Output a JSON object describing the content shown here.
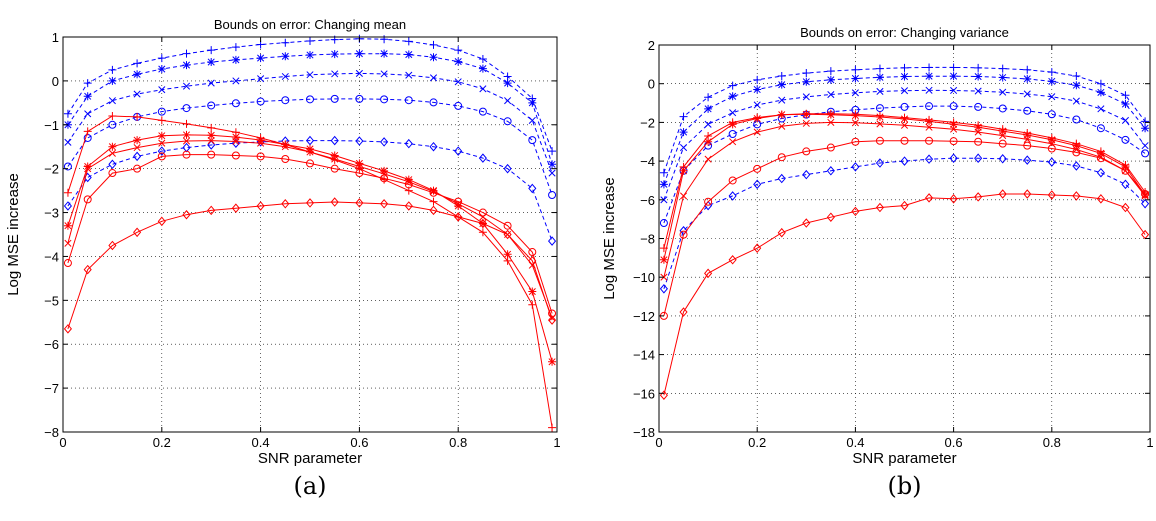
{
  "chart_data": [
    {
      "type": "line",
      "caption": "(a)",
      "title": "Bounds on error: Changing mean",
      "xlabel": "SNR parameter",
      "ylabel": "Log MSE increase",
      "xlim": [
        0,
        1
      ],
      "ylim": [
        -8,
        1
      ],
      "xticks": [
        0,
        0.2,
        0.4,
        0.6,
        0.8,
        1
      ],
      "xtick_labels": [
        "0",
        "0.2",
        "0.4",
        "0.6",
        "0.8",
        "1"
      ],
      "yticks": [
        -8,
        -7,
        -6,
        -5,
        -4,
        -3,
        -2,
        -1,
        0,
        1
      ],
      "ytick_labels": [
        "−8",
        "−7",
        "−6",
        "−5",
        "−4",
        "−3",
        "−2",
        "−1",
        "0",
        "1"
      ],
      "grid": true,
      "x": [
        0.01,
        0.05,
        0.1,
        0.15,
        0.2,
        0.25,
        0.3,
        0.35,
        0.4,
        0.45,
        0.5,
        0.55,
        0.6,
        0.65,
        0.7,
        0.75,
        0.8,
        0.85,
        0.9,
        0.95,
        0.99
      ],
      "series": [
        {
          "color": "#0000ff",
          "dash": true,
          "marker": "plus",
          "values": [
            -0.75,
            -0.05,
            0.25,
            0.4,
            0.52,
            0.62,
            0.7,
            0.77,
            0.83,
            0.87,
            0.91,
            0.94,
            0.96,
            0.95,
            0.9,
            0.82,
            0.7,
            0.5,
            0.1,
            -0.4,
            -1.6
          ]
        },
        {
          "color": "#0000ff",
          "dash": true,
          "marker": "star",
          "values": [
            -1.0,
            -0.35,
            0.0,
            0.15,
            0.27,
            0.36,
            0.43,
            0.48,
            0.52,
            0.56,
            0.59,
            0.61,
            0.62,
            0.62,
            0.6,
            0.54,
            0.44,
            0.28,
            -0.05,
            -0.5,
            -1.9
          ]
        },
        {
          "color": "#0000ff",
          "dash": true,
          "marker": "x",
          "values": [
            -1.4,
            -0.75,
            -0.45,
            -0.3,
            -0.2,
            -0.12,
            -0.05,
            0.0,
            0.05,
            0.1,
            0.14,
            0.16,
            0.17,
            0.16,
            0.13,
            0.07,
            -0.02,
            -0.18,
            -0.45,
            -0.9,
            -2.1
          ]
        },
        {
          "color": "#0000ff",
          "dash": true,
          "marker": "circle",
          "values": [
            -1.95,
            -1.3,
            -1.0,
            -0.82,
            -0.7,
            -0.62,
            -0.56,
            -0.51,
            -0.47,
            -0.44,
            -0.42,
            -0.41,
            -0.41,
            -0.42,
            -0.44,
            -0.49,
            -0.57,
            -0.7,
            -0.92,
            -1.35,
            -2.6
          ]
        },
        {
          "color": "#0000ff",
          "dash": true,
          "marker": "diamond",
          "values": [
            -2.85,
            -2.2,
            -1.9,
            -1.72,
            -1.6,
            -1.52,
            -1.46,
            -1.42,
            -1.39,
            -1.37,
            -1.36,
            -1.36,
            -1.37,
            -1.39,
            -1.43,
            -1.5,
            -1.6,
            -1.76,
            -2.0,
            -2.45,
            -3.65
          ]
        },
        {
          "color": "#ff0000",
          "dash": false,
          "marker": "plus",
          "values": [
            -2.55,
            -1.15,
            -0.8,
            -0.82,
            -0.9,
            -0.98,
            -1.07,
            -1.17,
            -1.3,
            -1.45,
            -1.62,
            -1.8,
            -2.0,
            -2.25,
            -2.5,
            -2.75,
            -3.1,
            -3.45,
            -4.1,
            -5.1,
            -7.9
          ]
        },
        {
          "color": "#ff0000",
          "dash": false,
          "marker": "star",
          "values": [
            -3.3,
            -1.95,
            -1.5,
            -1.35,
            -1.25,
            -1.23,
            -1.24,
            -1.28,
            -1.35,
            -1.45,
            -1.55,
            -1.7,
            -1.88,
            -2.05,
            -2.25,
            -2.5,
            -2.85,
            -3.25,
            -3.95,
            -4.8,
            -6.4
          ]
        },
        {
          "color": "#ff0000",
          "dash": false,
          "marker": "x",
          "values": [
            -3.7,
            -2.0,
            -1.65,
            -1.52,
            -1.42,
            -1.37,
            -1.36,
            -1.38,
            -1.42,
            -1.5,
            -1.62,
            -1.78,
            -1.95,
            -2.12,
            -2.3,
            -2.52,
            -2.8,
            -3.1,
            -3.5,
            -4.2,
            -5.4
          ]
        },
        {
          "color": "#ff0000",
          "dash": false,
          "marker": "circle",
          "values": [
            -4.15,
            -2.7,
            -2.1,
            -2.0,
            -1.72,
            -1.68,
            -1.68,
            -1.7,
            -1.72,
            -1.78,
            -1.88,
            -2.0,
            -2.1,
            -2.22,
            -2.36,
            -2.55,
            -2.75,
            -3.0,
            -3.3,
            -3.9,
            -5.3
          ]
        },
        {
          "color": "#ff0000",
          "dash": false,
          "marker": "diamond",
          "values": [
            -5.65,
            -4.3,
            -3.75,
            -3.45,
            -3.2,
            -3.05,
            -2.95,
            -2.9,
            -2.85,
            -2.8,
            -2.78,
            -2.76,
            -2.78,
            -2.8,
            -2.85,
            -2.95,
            -3.1,
            -3.25,
            -3.5,
            -4.1,
            -5.45
          ]
        }
      ]
    },
    {
      "type": "line",
      "caption": "(b)",
      "title": "Bounds on error: Changing variance",
      "xlabel": "SNR parameter",
      "ylabel": "Log MSE increase",
      "xlim": [
        0,
        1
      ],
      "ylim": [
        -18,
        2
      ],
      "xticks": [
        0,
        0.2,
        0.4,
        0.6,
        0.8,
        1
      ],
      "xtick_labels": [
        "0",
        "0.2",
        "0.4",
        "0.6",
        "0.8",
        "1"
      ],
      "yticks": [
        -18,
        -16,
        -14,
        -12,
        -10,
        -8,
        -6,
        -4,
        -2,
        0,
        2
      ],
      "ytick_labels": [
        "−18",
        "−16",
        "−14",
        "−12",
        "−10",
        "−8",
        "−6",
        "−4",
        "−2",
        "0",
        "2"
      ],
      "grid": true,
      "x": [
        0.01,
        0.05,
        0.1,
        0.15,
        0.2,
        0.25,
        0.3,
        0.35,
        0.4,
        0.45,
        0.5,
        0.55,
        0.6,
        0.65,
        0.7,
        0.75,
        0.8,
        0.85,
        0.9,
        0.95,
        0.99
      ],
      "series": [
        {
          "color": "#0000ff",
          "dash": true,
          "marker": "plus",
          "values": [
            -4.6,
            -1.7,
            -0.7,
            -0.1,
            0.2,
            0.4,
            0.55,
            0.65,
            0.72,
            0.78,
            0.82,
            0.84,
            0.84,
            0.82,
            0.78,
            0.72,
            0.6,
            0.4,
            0.0,
            -0.6,
            -1.95
          ]
        },
        {
          "color": "#0000ff",
          "dash": true,
          "marker": "star",
          "values": [
            -5.2,
            -2.5,
            -1.3,
            -0.65,
            -0.3,
            -0.05,
            0.1,
            0.2,
            0.27,
            0.33,
            0.37,
            0.39,
            0.39,
            0.37,
            0.32,
            0.25,
            0.12,
            -0.08,
            -0.45,
            -1.05,
            -2.3
          ]
        },
        {
          "color": "#0000ff",
          "dash": true,
          "marker": "x",
          "values": [
            -6.0,
            -3.3,
            -2.1,
            -1.5,
            -1.1,
            -0.85,
            -0.68,
            -0.56,
            -0.47,
            -0.4,
            -0.36,
            -0.34,
            -0.35,
            -0.38,
            -0.44,
            -0.53,
            -0.67,
            -0.9,
            -1.3,
            -1.9,
            -3.2
          ]
        },
        {
          "color": "#0000ff",
          "dash": true,
          "marker": "circle",
          "values": [
            -7.2,
            -4.5,
            -3.2,
            -2.6,
            -2.1,
            -1.8,
            -1.6,
            -1.45,
            -1.35,
            -1.26,
            -1.2,
            -1.16,
            -1.16,
            -1.2,
            -1.28,
            -1.4,
            -1.58,
            -1.85,
            -2.3,
            -2.9,
            -3.6
          ]
        },
        {
          "color": "#0000ff",
          "dash": true,
          "marker": "diamond",
          "values": [
            -10.6,
            -7.6,
            -6.3,
            -5.8,
            -5.2,
            -4.9,
            -4.7,
            -4.5,
            -4.3,
            -4.1,
            -4.0,
            -3.9,
            -3.85,
            -3.85,
            -3.88,
            -3.95,
            -4.05,
            -4.25,
            -4.6,
            -5.2,
            -6.2
          ]
        },
        {
          "color": "#ff0000",
          "dash": false,
          "marker": "plus",
          "values": [
            -8.5,
            -4.3,
            -2.7,
            -2.0,
            -1.75,
            -1.6,
            -1.55,
            -1.55,
            -1.58,
            -1.65,
            -1.75,
            -1.87,
            -2.0,
            -2.15,
            -2.35,
            -2.55,
            -2.8,
            -3.1,
            -3.5,
            -4.2,
            -5.6
          ]
        },
        {
          "color": "#ff0000",
          "dash": false,
          "marker": "star",
          "values": [
            -9.1,
            -4.5,
            -3.0,
            -2.1,
            -1.8,
            -1.6,
            -1.58,
            -1.6,
            -1.65,
            -1.72,
            -1.82,
            -1.95,
            -2.1,
            -2.25,
            -2.45,
            -2.65,
            -2.9,
            -3.2,
            -3.6,
            -4.3,
            -5.75
          ]
        },
        {
          "color": "#ff0000",
          "dash": false,
          "marker": "x",
          "values": [
            -10.0,
            -5.8,
            -3.9,
            -3.0,
            -2.5,
            -2.2,
            -2.05,
            -2.0,
            -2.02,
            -2.08,
            -2.15,
            -2.25,
            -2.35,
            -2.5,
            -2.68,
            -2.88,
            -3.1,
            -3.4,
            -3.8,
            -4.5,
            -5.8
          ]
        },
        {
          "color": "#ff0000",
          "dash": false,
          "marker": "circle",
          "values": [
            -12.0,
            -7.8,
            -6.1,
            -5.0,
            -4.4,
            -3.8,
            -3.5,
            -3.3,
            -3.0,
            -2.95,
            -2.95,
            -2.95,
            -2.97,
            -3.0,
            -3.1,
            -3.2,
            -3.35,
            -3.55,
            -3.85,
            -4.5,
            -5.7
          ]
        },
        {
          "color": "#ff0000",
          "dash": false,
          "marker": "diamond",
          "values": [
            -16.1,
            -11.8,
            -9.8,
            -9.1,
            -8.5,
            -7.7,
            -7.2,
            -6.9,
            -6.6,
            -6.4,
            -6.3,
            -5.9,
            -5.95,
            -5.85,
            -5.7,
            -5.7,
            -5.75,
            -5.8,
            -5.95,
            -6.4,
            -7.8
          ]
        }
      ]
    }
  ]
}
